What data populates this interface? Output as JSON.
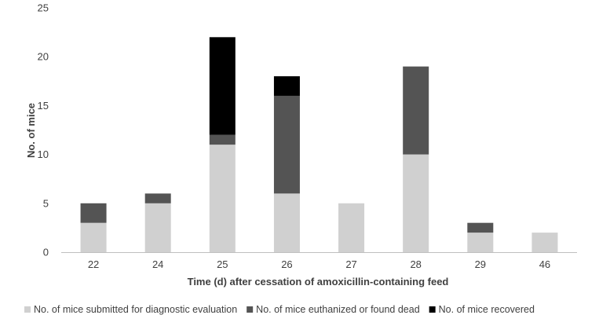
{
  "chart_data": {
    "type": "bar",
    "stacked": true,
    "categories": [
      "22",
      "24",
      "25",
      "26",
      "27",
      "28",
      "29",
      "46"
    ],
    "series": [
      {
        "name": "No. of mice submitted for diagnostic evaluation",
        "color": "#d0d0d0",
        "values": [
          3,
          5,
          11,
          6,
          5,
          10,
          2,
          2
        ]
      },
      {
        "name": "No. of mice euthanized or found dead",
        "color": "#545454",
        "values": [
          2,
          1,
          1,
          10,
          0,
          9,
          1,
          0
        ]
      },
      {
        "name": "No. of mice recovered",
        "color": "#000000",
        "values": [
          0,
          0,
          10,
          2,
          0,
          0,
          0,
          0
        ]
      }
    ],
    "xlabel": "Time (d) after cessation of amoxicillin-containing feed",
    "ylabel": "No. of mice",
    "ylim": [
      0,
      25
    ],
    "yticks": [
      0,
      5,
      10,
      15,
      20,
      25
    ],
    "grid": false,
    "legend": "bottom"
  }
}
